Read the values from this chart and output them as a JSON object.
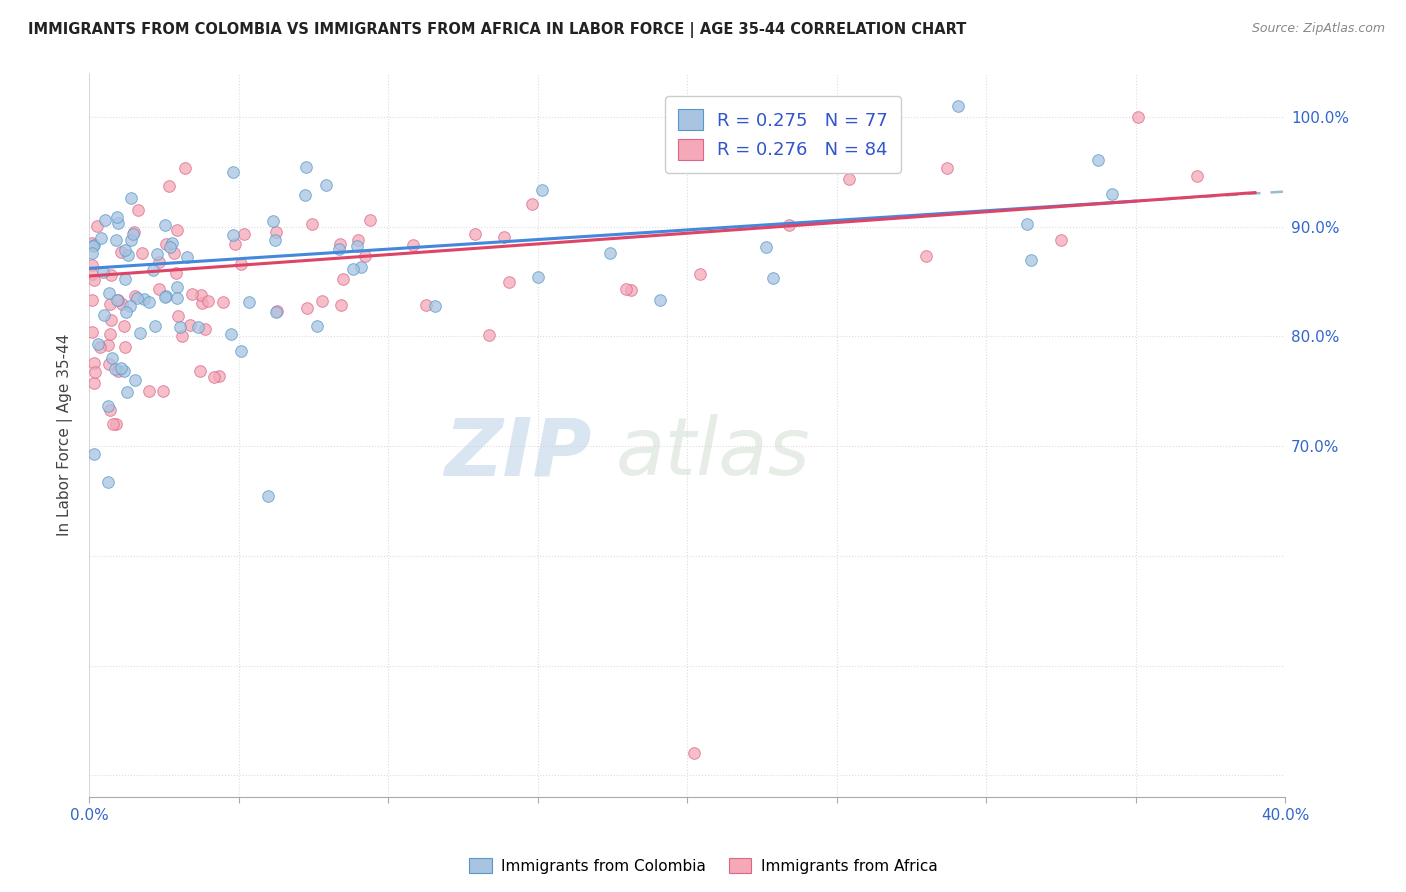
{
  "title": "IMMIGRANTS FROM COLOMBIA VS IMMIGRANTS FROM AFRICA IN LABOR FORCE | AGE 35-44 CORRELATION CHART",
  "source": "Source: ZipAtlas.com",
  "ylabel": "In Labor Force | Age 35-44",
  "xlim": [
    0.0,
    0.4
  ],
  "ylim": [
    0.38,
    1.04
  ],
  "ytick_positions": [
    0.4,
    0.5,
    0.6,
    0.7,
    0.8,
    0.9,
    1.0
  ],
  "right_ytick_positions": [
    0.7,
    0.8,
    0.9,
    1.0
  ],
  "right_yticklabels": [
    "70.0%",
    "80.0%",
    "90.0%",
    "100.0%"
  ],
  "xtick_vals": [
    0.0,
    0.05,
    0.1,
    0.15,
    0.2,
    0.25,
    0.3,
    0.35,
    0.4
  ],
  "xticklabels": [
    "0.0%",
    "",
    "",
    "",
    "",
    "",
    "",
    "",
    "40.0%"
  ],
  "colombia_color": "#a8c4e0",
  "africa_color": "#f4a8b8",
  "colombia_edge": "#5599cc",
  "africa_edge": "#dd6688",
  "trend_colombia_color": "#4488dd",
  "trend_africa_color": "#dd4466",
  "trend_dashed_color": "#99bbcc",
  "R_colombia": 0.275,
  "N_colombia": 77,
  "R_africa": 0.276,
  "N_africa": 84,
  "grid_color": "#dddddd",
  "grid_style": "dotted",
  "scatter_size": 70,
  "scatter_alpha": 0.75,
  "watermark_zip_color": "#c0d5e8",
  "watermark_atlas_color": "#c8d8c8"
}
